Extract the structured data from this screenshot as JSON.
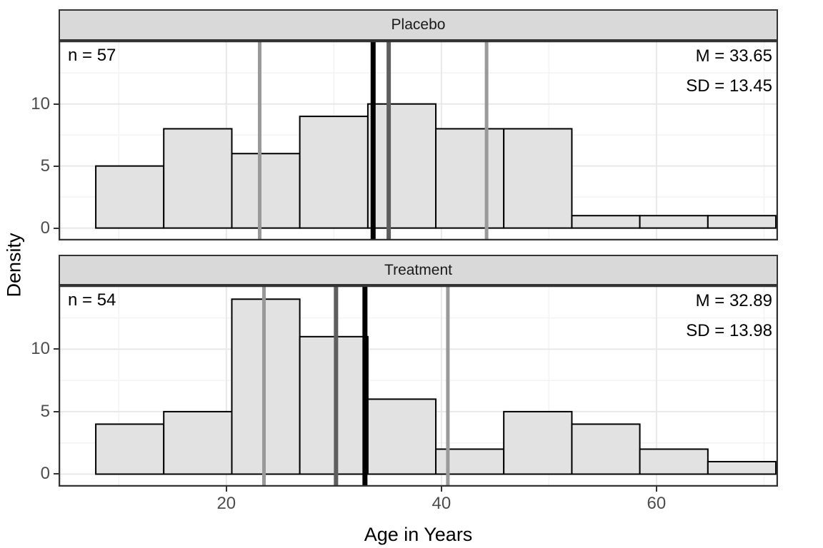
{
  "chart_data": {
    "type": "histogram",
    "xlabel": "Age in Years",
    "ylabel": "Density",
    "x_axis": {
      "ticks": [
        20,
        40,
        60
      ],
      "minor_ticks": [
        10,
        30,
        50,
        70
      ],
      "lim": [
        4.4,
        71.3
      ]
    },
    "y_axis": {
      "ticks": [
        0,
        5,
        10
      ],
      "minor_ticks": [
        2.5,
        7.5,
        12.5
      ],
      "lim": [
        -1.0,
        15.1
      ]
    },
    "bin_edges": [
      7.86,
      14.18,
      20.51,
      26.83,
      33.16,
      39.48,
      45.8,
      52.13,
      58.45,
      64.78,
      71.1
    ],
    "panels": [
      {
        "title": "Placebo",
        "n": 57,
        "n_label": "n = 57",
        "mean": 33.65,
        "sd": 13.45,
        "mean_label": "M = 33.65",
        "sd_label": "SD = 13.45",
        "counts": [
          5,
          8,
          6,
          9,
          10,
          8,
          8,
          1,
          1,
          1
        ],
        "vlines": [
          {
            "x": 23.1,
            "role": "lower-gray",
            "color": "#999999",
            "width": 5
          },
          {
            "x": 44.2,
            "role": "upper-gray",
            "color": "#999999",
            "width": 5
          },
          {
            "x": 35.1,
            "role": "median",
            "color": "#5e5e5e",
            "width": 6
          },
          {
            "x": 33.65,
            "role": "mean",
            "color": "#000000",
            "width": 7
          }
        ]
      },
      {
        "title": "Treatment",
        "n": 54,
        "n_label": "n = 54",
        "mean": 32.89,
        "sd": 13.98,
        "mean_label": "M = 32.89",
        "sd_label": "SD = 13.98",
        "counts": [
          4,
          5,
          14,
          11,
          6,
          2,
          5,
          4,
          2,
          1
        ],
        "vlines": [
          {
            "x": 23.5,
            "role": "lower-gray",
            "color": "#999999",
            "width": 5
          },
          {
            "x": 40.6,
            "role": "upper-gray",
            "color": "#999999",
            "width": 5
          },
          {
            "x": 30.2,
            "role": "median",
            "color": "#5e5e5e",
            "width": 6
          },
          {
            "x": 32.89,
            "role": "mean",
            "color": "#000000",
            "width": 7
          }
        ]
      }
    ]
  },
  "colors": {
    "strip_fill": "#d9d9d9",
    "panel_border": "#333333",
    "grid_major": "#e8e8e8",
    "grid_minor": "#f3f3f3",
    "bar_fill": "#e2e2e2",
    "bar_stroke": "#000000",
    "tick_text": "#4d4d4d",
    "tick_mark": "#333333"
  }
}
